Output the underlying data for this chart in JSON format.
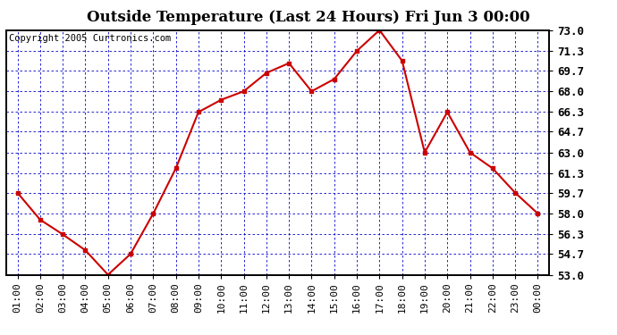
{
  "title": "Outside Temperature (Last 24 Hours) Fri Jun 3 00:00",
  "copyright": "Copyright 2005 Curtronics.com",
  "x_labels": [
    "01:00",
    "02:00",
    "03:00",
    "04:00",
    "05:00",
    "06:00",
    "07:00",
    "08:00",
    "09:00",
    "10:00",
    "11:00",
    "12:00",
    "13:00",
    "14:00",
    "15:00",
    "16:00",
    "17:00",
    "18:00",
    "19:00",
    "20:00",
    "21:00",
    "22:00",
    "23:00",
    "00:00"
  ],
  "y_values": [
    59.7,
    57.5,
    56.3,
    55.0,
    53.0,
    54.7,
    58.0,
    61.7,
    66.3,
    67.3,
    68.0,
    69.5,
    70.3,
    68.0,
    69.0,
    71.3,
    73.0,
    70.5,
    63.0,
    66.3,
    63.0,
    61.7,
    59.7,
    58.0
  ],
  "ylim_min": 53.0,
  "ylim_max": 73.0,
  "yticks": [
    53.0,
    54.7,
    56.3,
    58.0,
    59.7,
    61.3,
    63.0,
    64.7,
    66.3,
    68.0,
    69.7,
    71.3,
    73.0
  ],
  "ytick_labels": [
    "53.0",
    "54.7",
    "56.3",
    "58.0",
    "59.7",
    "61.3",
    "63.0",
    "64.7",
    "66.3",
    "68.0",
    "69.7",
    "71.3",
    "73.0"
  ],
  "line_color": "#cc0000",
  "marker_color": "#cc0000",
  "bg_color": "#ffffff",
  "plot_bg_color": "#ffffff",
  "grid_color": "#0000cc",
  "title_color": "#000000",
  "border_color": "#000000",
  "copyright_color": "#000000",
  "title_fontsize": 12,
  "tick_fontsize": 8,
  "ytick_fontsize": 9,
  "copyright_fontsize": 7.5
}
